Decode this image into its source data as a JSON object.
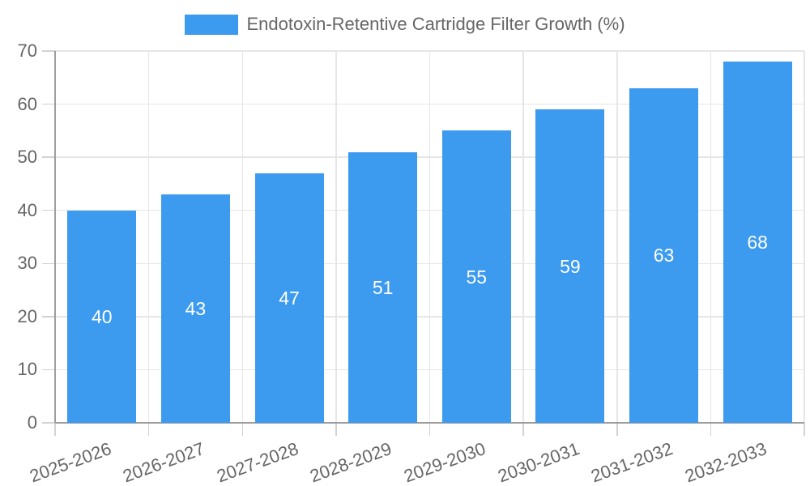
{
  "chart_data": {
    "type": "bar",
    "legend_label": "Endotoxin-Retentive Cartridge Filter Growth (%)",
    "categories": [
      "2025-2026",
      "2026-2027",
      "2027-2028",
      "2028-2029",
      "2029-2030",
      "2030-2031",
      "2031-2032",
      "2032-2033"
    ],
    "values": [
      40,
      43,
      47,
      51,
      55,
      59,
      63,
      68
    ],
    "ylim": [
      0,
      70
    ],
    "yticks": [
      0,
      10,
      20,
      30,
      40,
      50,
      60,
      70
    ],
    "xlabel": "",
    "ylabel": "",
    "legend_position": "top",
    "grid": "on",
    "bar_color": "#3C9AEF",
    "value_label_color": "#FFFFFF",
    "axis_text_color": "#666666",
    "grid_color": "#E6E6E6",
    "tick_color": "#D2D2D2",
    "axis_line_color": "#9E9E9E"
  }
}
